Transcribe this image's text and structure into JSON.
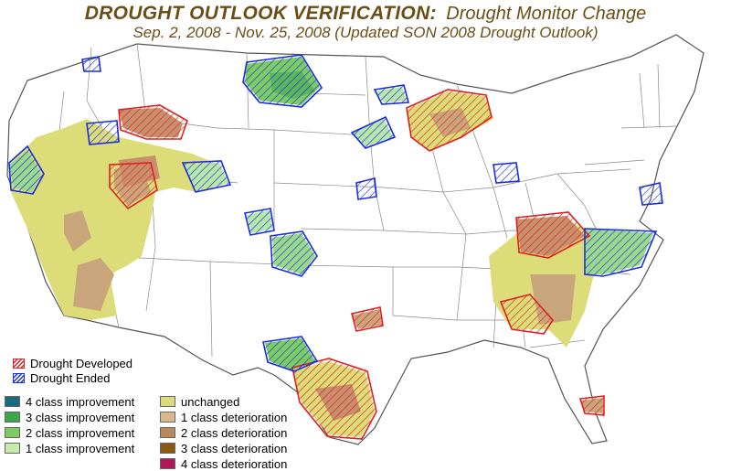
{
  "title": {
    "main": "DROUGHT OUTLOOK VERIFICATION:",
    "sub": "Drought Monitor Change",
    "period": "Sep. 2, 2008 - Nov. 25, 2008 (Updated SON 2008 Drought Outlook)"
  },
  "legend": {
    "hatch": [
      {
        "label": "Drought Developed",
        "color": "#e02020"
      },
      {
        "label": "Drought Ended",
        "color": "#1a2ee0"
      }
    ],
    "classes": [
      {
        "label": "4 class improvement",
        "color": "#1a6b7e"
      },
      {
        "label": "unchanged",
        "color": "#dcdc78"
      },
      {
        "label": "3 class improvement",
        "color": "#3ea64a"
      },
      {
        "label": "1 class deterioration",
        "color": "#d7b98c"
      },
      {
        "label": "2 class improvement",
        "color": "#7dcc63"
      },
      {
        "label": "2 class deterioration",
        "color": "#b9895c"
      },
      {
        "label": "1 class improvement",
        "color": "#c6ecaa"
      },
      {
        "label": "3 class deterioration",
        "color": "#8a5a12"
      },
      {
        "label": "",
        "color": ""
      },
      {
        "label": "4 class deterioration",
        "color": "#b01858"
      }
    ]
  }
}
